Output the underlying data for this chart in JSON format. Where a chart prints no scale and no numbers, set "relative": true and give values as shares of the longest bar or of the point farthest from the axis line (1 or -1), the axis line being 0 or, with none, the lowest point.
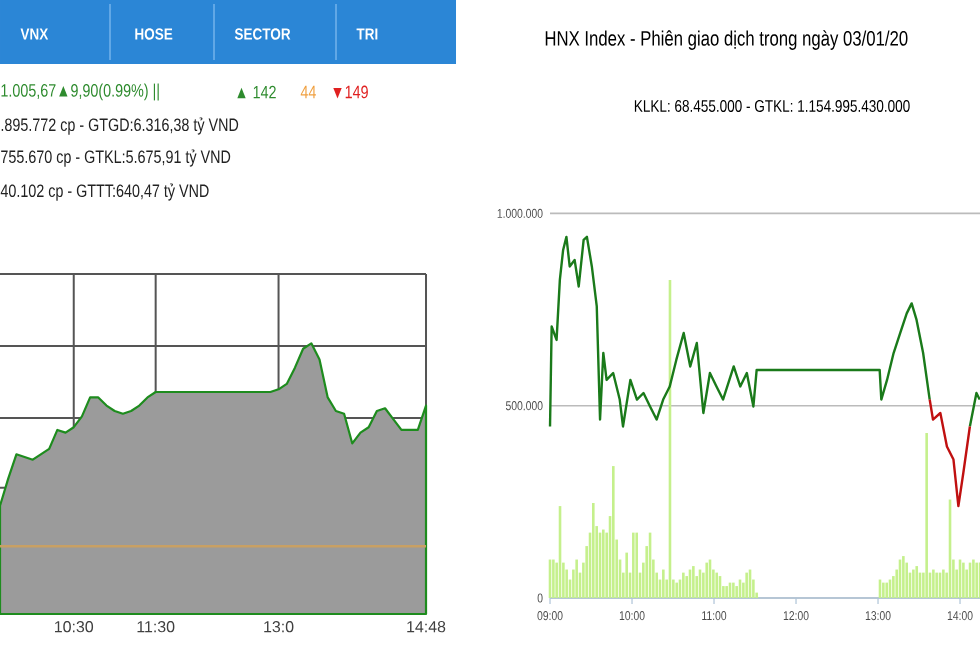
{
  "chart_data": [
    {
      "type": "area",
      "relative": true,
      "grid": true,
      "tick_labels": "x",
      "categories": [
        null,
        null,
        null,
        null,
        null,
        null,
        null,
        null,
        null,
        "10:30",
        null,
        null,
        null,
        null,
        null,
        null,
        null,
        null,
        null,
        "11:30",
        null,
        null,
        null,
        null,
        null,
        null,
        null,
        null,
        null,
        null,
        null,
        null,
        null,
        null,
        "13:0",
        null,
        null,
        null,
        null,
        null,
        null,
        null,
        null,
        null,
        null,
        null,
        null,
        null,
        null,
        null,
        null,
        null,
        "14:48"
      ],
      "series": [
        {
          "color": "#1e8c1e",
          "values": [
            0.4,
            0.5,
            0.59,
            0.58,
            0.57,
            0.59,
            0.61,
            0.68,
            0.67,
            0.69,
            0.73,
            0.8,
            0.8,
            0.77,
            0.75,
            0.74,
            0.75,
            0.77,
            0.8,
            0.82,
            0.82,
            0.82,
            0.82,
            0.82,
            0.82,
            0.82,
            0.82,
            0.82,
            0.82,
            0.82,
            0.82,
            0.82,
            0.82,
            0.82,
            0.83,
            0.85,
            0.91,
            0.98,
            1.0,
            0.94,
            0.8,
            0.75,
            0.74,
            0.63,
            0.67,
            0.69,
            0.75,
            0.76,
            0.72,
            0.68,
            0.68,
            0.68,
            0.77
          ]
        }
      ],
      "ref_lines": [
        {
          "axis": "y",
          "value": 0.25,
          "color": "#c8a064"
        }
      ],
      "annotations": [
        "VNX",
        "HOSE",
        "SECTOR",
        "TRI",
        "1.005,67▲9,90(0.99%) ||",
        "▲ 142",
        "44",
        "▼149",
        ".895.772 cp - GTGD:6.316,38 tỷ VND",
        "755.670 cp - GTKL:5.675,91 tỷ VND",
        "40.102 cp - GTTT:640,47 tỷ VND"
      ]
    },
    {
      "type": "line",
      "title": "HNX Index - Phiên giao dịch trong ngày 03/01/20",
      "subtitle": "KLKL: 68.455.000 - GTKL: 1.154.995.430.000",
      "xlim": [
        9,
        14.25
      ],
      "ylim": [
        0,
        1000000
      ],
      "xticks": [
        {
          "value": 9,
          "label": "09:00"
        },
        {
          "value": 10,
          "label": "10:00"
        },
        {
          "value": 11,
          "label": "11:00"
        },
        {
          "value": 12,
          "label": "12:00"
        },
        {
          "value": 13,
          "label": "13:00"
        },
        {
          "value": 14,
          "label": "14:00"
        }
      ],
      "yticks": [
        0,
        {
          "value": 500000,
          "label": "500.000"
        },
        {
          "value": 1000000,
          "label": "1.000.000"
        }
      ],
      "grid": "y",
      "series": [
        {
          "type": "bar",
          "color": "#c5f08c",
          "x": [
            9.0,
            9.041,
            9.081,
            9.122,
            9.163,
            9.203,
            9.244,
            9.285,
            9.325,
            9.366,
            9.407,
            9.447,
            9.488,
            9.528,
            9.569,
            9.61,
            9.65,
            9.691,
            9.732,
            9.772,
            9.813,
            9.854,
            9.894,
            9.935,
            9.976,
            10.016,
            10.057,
            10.098,
            10.138,
            10.179,
            10.22,
            10.26,
            10.301,
            10.341,
            10.382,
            10.423,
            10.463,
            10.504,
            10.545,
            10.585,
            10.626,
            10.667,
            10.707,
            10.748,
            10.789,
            10.829,
            10.87,
            10.911,
            10.951,
            10.992,
            11.033,
            11.073,
            11.114,
            11.154,
            11.195,
            11.236,
            11.276,
            11.317,
            11.358,
            11.398,
            11.439,
            11.48,
            11.52,
            13.024,
            13.065,
            13.106,
            13.146,
            13.187,
            13.228,
            13.268,
            13.309,
            13.35,
            13.39,
            13.431,
            13.472,
            13.512,
            13.553,
            13.593,
            13.634,
            13.675,
            13.715,
            13.756,
            13.797,
            13.837,
            13.878,
            13.919,
            13.959,
            14.0,
            14.041,
            14.081,
            14.122,
            14.163,
            14.203,
            14.244
          ],
          "values": [
            100000,
            100000,
            92000,
            239000,
            92000,
            74000,
            48000,
            74000,
            100000,
            66000,
            92000,
            135000,
            170000,
            247000,
            187000,
            170000,
            178000,
            170000,
            213000,
            343000,
            152000,
            100000,
            66000,
            118000,
            66000,
            170000,
            170000,
            66000,
            92000,
            135000,
            170000,
            100000,
            66000,
            48000,
            74000,
            48000,
            827000,
            48000,
            40000,
            48000,
            66000,
            57000,
            74000,
            83000,
            57000,
            74000,
            66000,
            92000,
            100000,
            74000,
            66000,
            57000,
            31000,
            31000,
            40000,
            40000,
            31000,
            48000,
            40000,
            66000,
            74000,
            48000,
            14000,
            48000,
            40000,
            40000,
            48000,
            57000,
            74000,
            100000,
            109000,
            92000,
            66000,
            74000,
            83000,
            66000,
            66000,
            429000,
            66000,
            74000,
            66000,
            66000,
            74000,
            66000,
            256000,
            100000,
            74000,
            100000,
            92000,
            74000,
            92000,
            100000,
            92000,
            92000
          ]
        },
        {
          "color": "#1a7a1a",
          "x": [
            9.0,
            9.02,
            9.08,
            9.12,
            9.16,
            9.2,
            9.24,
            9.3,
            9.35,
            9.41,
            9.45,
            9.51,
            9.57,
            9.61,
            9.65,
            9.69,
            9.77,
            9.85,
            9.89,
            9.98,
            10.06,
            10.14,
            10.22,
            10.3,
            10.38,
            10.46,
            10.54,
            10.63,
            10.71,
            10.79,
            10.87,
            10.95,
            11.03,
            11.11,
            11.24,
            11.32,
            11.4,
            11.48,
            11.52,
            13.02,
            13.04,
            13.11,
            13.19,
            13.27,
            13.35,
            13.41,
            13.47,
            13.55,
            13.63,
            13.67,
            13.76,
            13.84,
            13.92,
            13.98,
            14.04,
            14.12,
            14.2,
            14.24
          ],
          "values": [
            446000,
            706000,
            671000,
            827000,
            905000,
            939000,
            862000,
            879000,
            810000,
            931000,
            939000,
            862000,
            758000,
            464000,
            637000,
            567000,
            585000,
            516000,
            446000,
            567000,
            516000,
            533000,
            498000,
            464000,
            516000,
            550000,
            619000,
            689000,
            602000,
            663000,
            481000,
            585000,
            550000,
            516000,
            602000,
            550000,
            585000,
            498000,
            593000,
            593000,
            516000,
            567000,
            637000,
            689000,
            740000,
            766000,
            723000,
            637000,
            516000,
            null,
            null,
            null,
            null,
            null,
            null,
            446000,
            533000,
            516000
          ]
        },
        {
          "color": "#c01010",
          "x": [
            13.63,
            13.67,
            13.76,
            13.84,
            13.92,
            13.98,
            14.04,
            14.12
          ],
          "values": [
            516000,
            464000,
            481000,
            394000,
            360000,
            239000,
            325000,
            446000
          ]
        }
      ]
    }
  ]
}
